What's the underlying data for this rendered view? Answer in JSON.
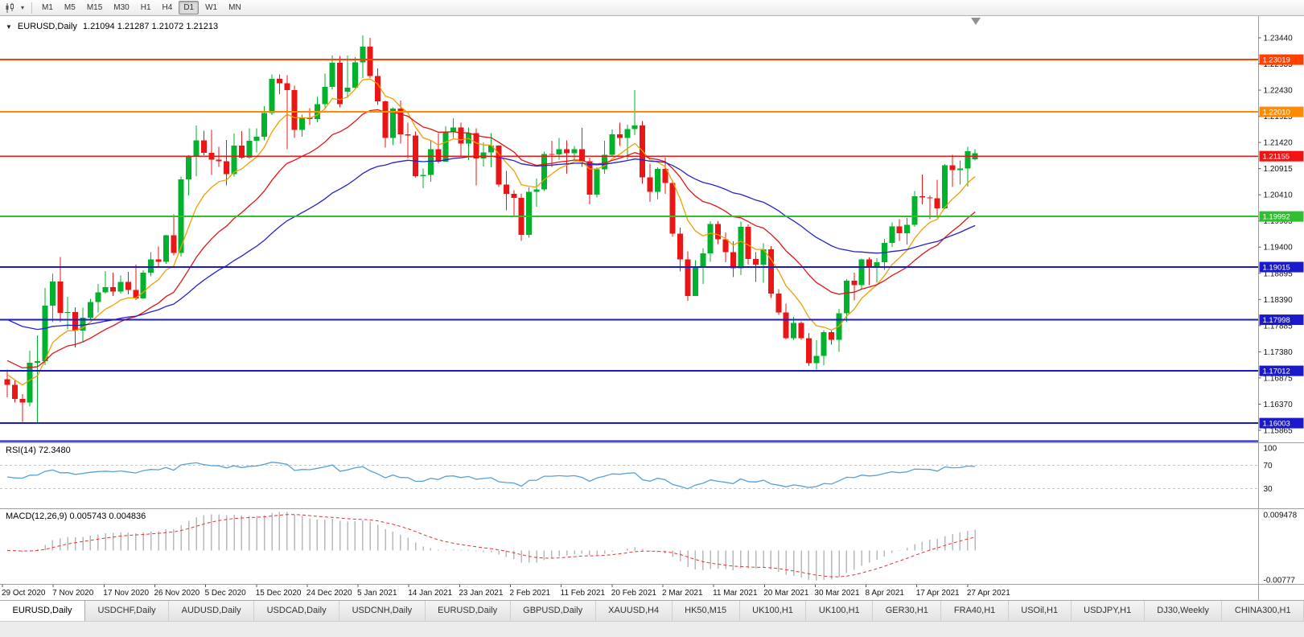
{
  "toolbar": {
    "timeframes": [
      "M1",
      "M5",
      "M15",
      "M30",
      "H1",
      "H4",
      "D1",
      "W1",
      "MN"
    ],
    "active_timeframe": "D1",
    "chart_icon": "candlestick-chart",
    "dropdown_icon": "▾"
  },
  "chart": {
    "collapse_icon": "▼",
    "symbol": "EURUSD,Daily",
    "ohlc_text": "1.21094 1.21287 1.21072 1.21213"
  },
  "indicators": {
    "rsi_label": "RSI(14) 72.3480",
    "macd_label": "MACD(12,26,9) 0.005743 0.004836"
  },
  "chart_data": {
    "type": "candlestick",
    "symbol": "EURUSD",
    "period": "Daily",
    "current_ohlc": {
      "open": 1.21094,
      "high": 1.21287,
      "low": 1.21072,
      "close": 1.21213
    },
    "colors": {
      "up": "#00b22c",
      "down": "#ea1515",
      "background": "#ffffff",
      "axis_text": "#111111",
      "separator": "#9e9e9e"
    },
    "y_axis_ticks": [
      1.2344,
      1.22935,
      1.2243,
      1.21925,
      1.2142,
      1.20915,
      1.2041,
      1.19905,
      1.194,
      1.18895,
      1.1839,
      1.17885,
      1.1738,
      1.16875,
      1.1637,
      1.15865
    ],
    "x_labels": [
      "29 Oct 2020",
      "7 Nov 2020",
      "17 Nov 2020",
      "26 Nov 2020",
      "5 Dec 2020",
      "15 Dec 2020",
      "24 Dec 2020",
      "5 Jan 2021",
      "14 Jan 2021",
      "23 Jan 2021",
      "2 Feb 2021",
      "11 Feb 2021",
      "20 Feb 2021",
      "2 Mar 2021",
      "11 Mar 2021",
      "20 Mar 2021",
      "30 Mar 2021",
      "8 Apr 2021",
      "17 Apr 2021",
      "27 Apr 2021"
    ],
    "hlines": [
      {
        "value": 1.23019,
        "label": "1.23019",
        "color": "#ff4000"
      },
      {
        "value": 1.2201,
        "label": "1.22010",
        "color": "#ff8c00"
      },
      {
        "value": 1.21155,
        "label": "1.21155",
        "color": "#f01414"
      },
      {
        "value": 1.19992,
        "label": "1.19992",
        "color": "#2fbf2f"
      },
      {
        "value": 1.19015,
        "label": "1.19015",
        "color": "#1a1acc"
      },
      {
        "value": 1.17998,
        "label": "1.17998",
        "color": "#1a1acc"
      },
      {
        "value": 1.17012,
        "label": "1.17012",
        "color": "#1a1acc"
      },
      {
        "value": 1.16003,
        "label": "1.16003",
        "color": "#1a1acc"
      },
      {
        "value": 1.15655,
        "label": "",
        "color": "#1a1acc"
      }
    ],
    "moving_averages": [
      {
        "name": "ma-fast",
        "period": 8,
        "color": "#efa000",
        "seed": 1.17
      },
      {
        "name": "ma-medium",
        "period": 20,
        "color": "#e41414",
        "seed": 1.1726
      },
      {
        "name": "ma-slow",
        "period": 45,
        "color": "#2323cf",
        "seed": 1.1806
      }
    ],
    "rsi": {
      "period": 14,
      "current": 72.348,
      "color": "#57a0da",
      "levels": [
        70,
        30
      ],
      "axis_values": [
        100,
        70,
        30
      ],
      "axis_labels": [
        "100",
        "70",
        "30"
      ]
    },
    "macd": {
      "fast": 12,
      "slow": 26,
      "signal_period": 9,
      "macd_current": 0.005743,
      "signal_current": 0.004836,
      "axis_max": 0.009478,
      "axis_min": -0.00777,
      "axis_max_label": "0.009478",
      "axis_min_label": "-0.00777",
      "hist_color": "#b9b9b9",
      "signal_color": "#e23333"
    },
    "candles": [
      [
        1.1685,
        1.1704,
        1.165,
        1.1674
      ],
      [
        1.1674,
        1.1683,
        1.164,
        1.1647
      ],
      [
        1.1647,
        1.1656,
        1.1603,
        1.164
      ],
      [
        1.164,
        1.174,
        1.1633,
        1.1717
      ],
      [
        1.1717,
        1.177,
        1.1602,
        1.172
      ],
      [
        1.172,
        1.1861,
        1.1712,
        1.1827
      ],
      [
        1.1827,
        1.1888,
        1.1795,
        1.1874
      ],
      [
        1.1874,
        1.1921,
        1.1795,
        1.1813
      ],
      [
        1.1813,
        1.1844,
        1.1781,
        1.1815
      ],
      [
        1.1815,
        1.1824,
        1.1746,
        1.1779
      ],
      [
        1.1779,
        1.1823,
        1.1758,
        1.1804
      ],
      [
        1.1804,
        1.184,
        1.1799,
        1.1834
      ],
      [
        1.1834,
        1.1869,
        1.1814,
        1.1853
      ],
      [
        1.1853,
        1.1894,
        1.185,
        1.1863
      ],
      [
        1.1863,
        1.1891,
        1.1846,
        1.1854
      ],
      [
        1.1854,
        1.1885,
        1.185,
        1.1873
      ],
      [
        1.1873,
        1.1892,
        1.1849,
        1.1857
      ],
      [
        1.1857,
        1.1906,
        1.1838,
        1.1841
      ],
      [
        1.1841,
        1.1895,
        1.184,
        1.1891
      ],
      [
        1.1891,
        1.193,
        1.1884,
        1.1916
      ],
      [
        1.1916,
        1.1941,
        1.1903,
        1.1912
      ],
      [
        1.1912,
        1.1964,
        1.1908,
        1.1963
      ],
      [
        1.1963,
        1.2003,
        1.1924,
        1.1929
      ],
      [
        1.1929,
        1.2076,
        1.1922,
        1.2071
      ],
      [
        1.2071,
        1.2117,
        1.204,
        1.2115
      ],
      [
        1.2115,
        1.2175,
        1.2077,
        1.2146
      ],
      [
        1.2146,
        1.2165,
        1.2117,
        1.2122
      ],
      [
        1.2122,
        1.2166,
        1.2079,
        1.2109
      ],
      [
        1.2109,
        1.2134,
        1.2095,
        1.2106
      ],
      [
        1.2106,
        1.2147,
        1.2059,
        1.2081
      ],
      [
        1.2081,
        1.2159,
        1.2076,
        1.2136
      ],
      [
        1.2136,
        1.2164,
        1.211,
        1.2113
      ],
      [
        1.2113,
        1.2169,
        1.211,
        1.2145
      ],
      [
        1.2145,
        1.2169,
        1.2123,
        1.2153
      ],
      [
        1.2153,
        1.2212,
        1.2146,
        1.2199
      ],
      [
        1.2199,
        1.2273,
        1.2195,
        1.2265
      ],
      [
        1.2265,
        1.2273,
        1.2235,
        1.2256
      ],
      [
        1.2256,
        1.2272,
        1.2129,
        1.2243
      ],
      [
        1.2243,
        1.2252,
        1.2151,
        1.2166
      ],
      [
        1.2166,
        1.2196,
        1.2153,
        1.219
      ],
      [
        1.219,
        1.2208,
        1.2176,
        1.2187
      ],
      [
        1.2187,
        1.223,
        1.2181,
        1.2216
      ],
      [
        1.2216,
        1.2275,
        1.2208,
        1.2249
      ],
      [
        1.2249,
        1.231,
        1.2245,
        1.2296
      ],
      [
        1.2296,
        1.2309,
        1.221,
        1.2216
      ],
      [
        1.224,
        1.231,
        1.2228,
        1.2248
      ],
      [
        1.2248,
        1.2307,
        1.2247,
        1.2297
      ],
      [
        1.2297,
        1.2349,
        1.2266,
        1.2327
      ],
      [
        1.2327,
        1.2344,
        1.2266,
        1.227
      ],
      [
        1.227,
        1.2285,
        1.2214,
        1.2221
      ],
      [
        1.2221,
        1.2223,
        1.2132,
        1.2151
      ],
      [
        1.2151,
        1.221,
        1.2137,
        1.2207
      ],
      [
        1.2207,
        1.2223,
        1.214,
        1.2158
      ],
      [
        1.2158,
        1.218,
        1.2111,
        1.2155
      ],
      [
        1.2155,
        1.2163,
        1.2075,
        1.2077
      ],
      [
        1.2077,
        1.2092,
        1.2054,
        1.2079
      ],
      [
        1.2079,
        1.2145,
        1.2066,
        1.2129
      ],
      [
        1.2129,
        1.2159,
        1.2102,
        1.2105
      ],
      [
        1.2105,
        1.2173,
        1.2105,
        1.2163
      ],
      [
        1.2163,
        1.2189,
        1.2151,
        1.2171
      ],
      [
        1.2171,
        1.218,
        1.2116,
        1.214
      ],
      [
        1.214,
        1.2171,
        1.2108,
        1.216
      ],
      [
        1.216,
        1.2169,
        1.2059,
        1.2111
      ],
      [
        1.2111,
        1.2142,
        1.2096,
        1.2123
      ],
      [
        1.2123,
        1.216,
        1.2094,
        1.2136
      ],
      [
        1.2136,
        1.2137,
        1.2056,
        1.2061
      ],
      [
        1.2061,
        1.2087,
        1.2011,
        1.2043
      ],
      [
        1.2043,
        1.205,
        1.1999,
        1.2035
      ],
      [
        1.2035,
        1.2043,
        1.1952,
        1.1964
      ],
      [
        1.1964,
        1.2055,
        1.1958,
        1.2047
      ],
      [
        1.2047,
        1.2072,
        1.2018,
        1.2051
      ],
      [
        1.2051,
        1.2124,
        1.2048,
        1.212
      ],
      [
        1.212,
        1.2145,
        1.2095,
        1.2119
      ],
      [
        1.2119,
        1.2151,
        1.2109,
        1.2129
      ],
      [
        1.2129,
        1.2146,
        1.2082,
        1.2121
      ],
      [
        1.2121,
        1.2135,
        1.2109,
        1.2129
      ],
      [
        1.2129,
        1.217,
        1.2095,
        1.2106
      ],
      [
        1.2106,
        1.2113,
        1.2023,
        1.2041
      ],
      [
        1.2041,
        1.2094,
        1.2036,
        1.209
      ],
      [
        1.209,
        1.2145,
        1.2082,
        1.2118
      ],
      [
        1.2118,
        1.2167,
        1.2116,
        1.2158
      ],
      [
        1.2158,
        1.218,
        1.2135,
        1.2151
      ],
      [
        1.2151,
        1.2176,
        1.2109,
        1.2168
      ],
      [
        1.2168,
        1.2243,
        1.2156,
        1.2175
      ],
      [
        1.2175,
        1.2183,
        1.2062,
        1.2075
      ],
      [
        1.2075,
        1.2101,
        1.2027,
        1.2047
      ],
      [
        1.2047,
        1.2094,
        1.2033,
        1.2091
      ],
      [
        1.2091,
        1.2113,
        1.2043,
        1.2064
      ],
      [
        1.2064,
        1.2069,
        1.196,
        1.1966
      ],
      [
        1.1966,
        1.1978,
        1.1893,
        1.1916
      ],
      [
        1.1916,
        1.1932,
        1.1836,
        1.1846
      ],
      [
        1.1846,
        1.1915,
        1.1846,
        1.19
      ],
      [
        1.19,
        1.1938,
        1.1869,
        1.1928
      ],
      [
        1.1928,
        1.199,
        1.1912,
        1.1985
      ],
      [
        1.1985,
        1.199,
        1.1946,
        1.1955
      ],
      [
        1.1955,
        1.1968,
        1.1911,
        1.193
      ],
      [
        1.193,
        1.1951,
        1.1882,
        1.1899
      ],
      [
        1.1899,
        1.1989,
        1.1886,
        1.1979
      ],
      [
        1.1979,
        1.1984,
        1.1906,
        1.1917
      ],
      [
        1.1917,
        1.193,
        1.1873,
        1.1906
      ],
      [
        1.1906,
        1.1947,
        1.1871,
        1.1936
      ],
      [
        1.1936,
        1.1942,
        1.1842,
        1.185
      ],
      [
        1.185,
        1.1859,
        1.1809,
        1.1814
      ],
      [
        1.1814,
        1.1831,
        1.1762,
        1.1764
      ],
      [
        1.1764,
        1.1805,
        1.1761,
        1.1794
      ],
      [
        1.1794,
        1.1797,
        1.1761,
        1.1764
      ],
      [
        1.1764,
        1.1774,
        1.1711,
        1.1716
      ],
      [
        1.1716,
        1.176,
        1.1704,
        1.173
      ],
      [
        1.173,
        1.178,
        1.1712,
        1.1776
      ],
      [
        1.1776,
        1.1779,
        1.1752,
        1.1761
      ],
      [
        1.1761,
        1.1821,
        1.1738,
        1.1812
      ],
      [
        1.1812,
        1.1878,
        1.1795,
        1.1875
      ],
      [
        1.1875,
        1.1891,
        1.1837,
        1.1867
      ],
      [
        1.1867,
        1.1918,
        1.186,
        1.1916
      ],
      [
        1.1916,
        1.192,
        1.1867,
        1.19
      ],
      [
        1.19,
        1.1919,
        1.1871,
        1.1911
      ],
      [
        1.1911,
        1.1956,
        1.1896,
        1.1948
      ],
      [
        1.1948,
        1.1988,
        1.194,
        1.198
      ],
      [
        1.198,
        1.1994,
        1.1952,
        1.1967
      ],
      [
        1.1967,
        1.1996,
        1.1945,
        1.1983
      ],
      [
        1.1983,
        1.2048,
        1.1979,
        1.2038
      ],
      [
        1.2038,
        1.208,
        1.2023,
        1.2036
      ],
      [
        1.2036,
        1.204,
        1.1994,
        1.2034
      ],
      [
        1.2034,
        1.207,
        1.1997,
        1.2015
      ],
      [
        1.2015,
        1.21,
        1.2013,
        1.2098
      ],
      [
        1.2098,
        1.2118,
        1.2056,
        1.2089
      ],
      [
        1.2089,
        1.2107,
        1.2061,
        1.2092
      ],
      [
        1.2092,
        1.2134,
        1.2057,
        1.2125
      ],
      [
        1.21094,
        1.21287,
        1.21072,
        1.21213
      ]
    ]
  },
  "tab_bar": {
    "active_index": 0,
    "tabs": [
      "EURUSD,Daily",
      "USDCHF,Daily",
      "AUDUSD,Daily",
      "USDCAD,Daily",
      "USDCNH,Daily",
      "EURUSD,Daily",
      "GBPUSD,Daily",
      "XAUUSD,H4",
      "HK50,M15",
      "UK100,H1",
      "UK100,H1",
      "GER30,H1",
      "FRA40,H1",
      "USOil,H1",
      "USDJPY,H1",
      "DJ30,Weekly",
      "CHINA300,H1"
    ]
  }
}
